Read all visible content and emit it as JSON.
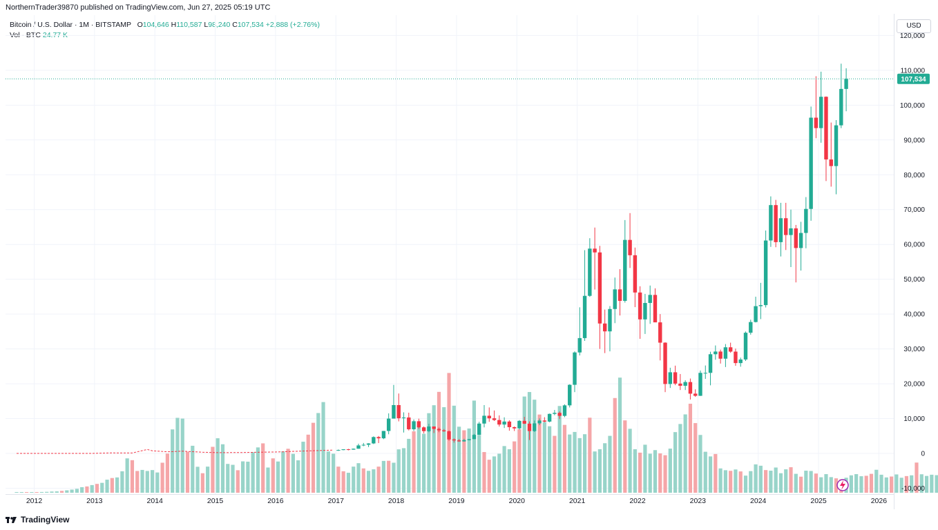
{
  "publish_line": "NorthernTrader39870 published on TradingView.com, Jun 27, 2025 05:19 UTC",
  "legend": {
    "symbol": "Bitcoin / U.S. Dollar · 1M · BITSTAMP",
    "o_label": "O",
    "o_value": "104,646",
    "h_label": "H",
    "h_value": "110,587",
    "l_label": "L",
    "l_value": "98,240",
    "c_label": "C",
    "c_value": "107,534",
    "change": "+2,888 (+2.76%)",
    "vol_label": "Vol · BTC",
    "vol_value": "24.77 K"
  },
  "currency_button": "USD",
  "footer_logo_text": "TradingView",
  "colors": {
    "up": "#22ab94",
    "down": "#f23645",
    "up_vol": "#98d4c9",
    "down_vol": "#f5a6a8",
    "grid": "#f0f3fa",
    "axis_text": "#131722"
  },
  "chart_data": {
    "type": "candlestick",
    "interval": "1M",
    "ylim": [
      -10000,
      120000
    ],
    "y_ticks": [
      120000,
      110000,
      100000,
      90000,
      80000,
      70000,
      60000,
      50000,
      40000,
      30000,
      20000,
      10000,
      0,
      -10000
    ],
    "y_tick_labels": [
      "120,000",
      "110,000",
      "100,000",
      "90,000",
      "80,000",
      "70,000",
      "60,000",
      "50,000",
      "40,000",
      "30,000",
      "20,000",
      "10,000",
      "0",
      "-10,000"
    ],
    "x_ticks": [
      "2012",
      "2013",
      "2014",
      "2015",
      "2016",
      "2017",
      "2018",
      "2019",
      "2020",
      "2021",
      "2022",
      "2023",
      "2024",
      "2025",
      "2026"
    ],
    "last_price": 107534,
    "last_price_label": "107,534",
    "candles": [
      {
        "d": "2017-01",
        "o": 965,
        "h": 1130,
        "l": 750,
        "c": 970
      },
      {
        "d": "2017-02",
        "o": 970,
        "h": 1200,
        "l": 920,
        "c": 1190
      },
      {
        "d": "2017-03",
        "o": 1190,
        "h": 1300,
        "l": 890,
        "c": 1080
      },
      {
        "d": "2017-04",
        "o": 1080,
        "h": 1400,
        "l": 1070,
        "c": 1350
      },
      {
        "d": "2017-05",
        "o": 1350,
        "h": 2790,
        "l": 1340,
        "c": 2300
      },
      {
        "d": "2017-06",
        "o": 2300,
        "h": 3000,
        "l": 2080,
        "c": 2480
      },
      {
        "d": "2017-07",
        "o": 2480,
        "h": 2950,
        "l": 1830,
        "c": 2870
      },
      {
        "d": "2017-08",
        "o": 2870,
        "h": 4900,
        "l": 2690,
        "c": 4700
      },
      {
        "d": "2017-09",
        "o": 4700,
        "h": 5000,
        "l": 2970,
        "c": 4340
      },
      {
        "d": "2017-10",
        "o": 4340,
        "h": 6470,
        "l": 4100,
        "c": 6450
      },
      {
        "d": "2017-11",
        "o": 6450,
        "h": 11500,
        "l": 5500,
        "c": 10000
      },
      {
        "d": "2017-12",
        "o": 10000,
        "h": 19666,
        "l": 10900,
        "c": 13880
      },
      {
        "d": "2018-01",
        "o": 13880,
        "h": 17200,
        "l": 9200,
        "c": 10100
      },
      {
        "d": "2018-02",
        "o": 10100,
        "h": 11800,
        "l": 6000,
        "c": 10320
      },
      {
        "d": "2018-03",
        "o": 10320,
        "h": 11700,
        "l": 6600,
        "c": 6930
      },
      {
        "d": "2018-04",
        "o": 6930,
        "h": 9760,
        "l": 6430,
        "c": 9240
      },
      {
        "d": "2018-05",
        "o": 9240,
        "h": 9990,
        "l": 7030,
        "c": 7490
      },
      {
        "d": "2018-06",
        "o": 7490,
        "h": 7760,
        "l": 5750,
        "c": 6390
      },
      {
        "d": "2018-07",
        "o": 6390,
        "h": 8490,
        "l": 6080,
        "c": 7730
      },
      {
        "d": "2018-08",
        "o": 7730,
        "h": 7760,
        "l": 5880,
        "c": 7030
      },
      {
        "d": "2018-09",
        "o": 7030,
        "h": 7420,
        "l": 6100,
        "c": 6630
      },
      {
        "d": "2018-10",
        "o": 6630,
        "h": 7000,
        "l": 6200,
        "c": 6370
      },
      {
        "d": "2018-11",
        "o": 6370,
        "h": 6590,
        "l": 3650,
        "c": 4010
      },
      {
        "d": "2018-12",
        "o": 4010,
        "h": 4300,
        "l": 3120,
        "c": 3740
      },
      {
        "d": "2019-01",
        "o": 3740,
        "h": 4140,
        "l": 3350,
        "c": 3460
      },
      {
        "d": "2019-02",
        "o": 3460,
        "h": 4210,
        "l": 3380,
        "c": 3830
      },
      {
        "d": "2019-03",
        "o": 3830,
        "h": 4140,
        "l": 3730,
        "c": 4100
      },
      {
        "d": "2019-04",
        "o": 4100,
        "h": 5600,
        "l": 4080,
        "c": 5320
      },
      {
        "d": "2019-05",
        "o": 5320,
        "h": 9080,
        "l": 5280,
        "c": 8570
      },
      {
        "d": "2019-06",
        "o": 8570,
        "h": 13880,
        "l": 7480,
        "c": 10820
      },
      {
        "d": "2019-07",
        "o": 10820,
        "h": 13200,
        "l": 9070,
        "c": 10080
      },
      {
        "d": "2019-08",
        "o": 10080,
        "h": 12330,
        "l": 9320,
        "c": 9590
      },
      {
        "d": "2019-09",
        "o": 9590,
        "h": 10920,
        "l": 7710,
        "c": 8290
      },
      {
        "d": "2019-10",
        "o": 8290,
        "h": 10370,
        "l": 7300,
        "c": 9150
      },
      {
        "d": "2019-11",
        "o": 9150,
        "h": 9520,
        "l": 6520,
        "c": 7540
      },
      {
        "d": "2019-12",
        "o": 7540,
        "h": 7750,
        "l": 6430,
        "c": 7190
      },
      {
        "d": "2020-01",
        "o": 7190,
        "h": 9580,
        "l": 6860,
        "c": 9350
      },
      {
        "d": "2020-02",
        "o": 9350,
        "h": 10500,
        "l": 8440,
        "c": 8540
      },
      {
        "d": "2020-03",
        "o": 8540,
        "h": 9190,
        "l": 3850,
        "c": 6420
      },
      {
        "d": "2020-04",
        "o": 6420,
        "h": 9460,
        "l": 6160,
        "c": 8630
      },
      {
        "d": "2020-05",
        "o": 8630,
        "h": 10070,
        "l": 8120,
        "c": 9450
      },
      {
        "d": "2020-06",
        "o": 9450,
        "h": 10400,
        "l": 8930,
        "c": 9140
      },
      {
        "d": "2020-07",
        "o": 9140,
        "h": 11450,
        "l": 8930,
        "c": 11350
      },
      {
        "d": "2020-08",
        "o": 11350,
        "h": 12470,
        "l": 10960,
        "c": 11650
      },
      {
        "d": "2020-09",
        "o": 11650,
        "h": 12070,
        "l": 9880,
        "c": 10780
      },
      {
        "d": "2020-10",
        "o": 10780,
        "h": 14100,
        "l": 10400,
        "c": 13800
      },
      {
        "d": "2020-11",
        "o": 13800,
        "h": 19850,
        "l": 13200,
        "c": 19700
      },
      {
        "d": "2020-12",
        "o": 19700,
        "h": 29300,
        "l": 17600,
        "c": 28990
      },
      {
        "d": "2021-01",
        "o": 28990,
        "h": 41950,
        "l": 28130,
        "c": 33110
      },
      {
        "d": "2021-02",
        "o": 33110,
        "h": 58350,
        "l": 32300,
        "c": 45240
      },
      {
        "d": "2021-03",
        "o": 45240,
        "h": 61790,
        "l": 44950,
        "c": 58800
      },
      {
        "d": "2021-04",
        "o": 58800,
        "h": 64850,
        "l": 47050,
        "c": 57710
      },
      {
        "d": "2021-05",
        "o": 57710,
        "h": 59600,
        "l": 30000,
        "c": 37300
      },
      {
        "d": "2021-06",
        "o": 37300,
        "h": 41300,
        "l": 28800,
        "c": 35040
      },
      {
        "d": "2021-07",
        "o": 35040,
        "h": 42300,
        "l": 29300,
        "c": 41460
      },
      {
        "d": "2021-08",
        "o": 41460,
        "h": 50500,
        "l": 37400,
        "c": 47100
      },
      {
        "d": "2021-09",
        "o": 47100,
        "h": 52900,
        "l": 39600,
        "c": 43800
      },
      {
        "d": "2021-10",
        "o": 43800,
        "h": 67000,
        "l": 43300,
        "c": 61300
      },
      {
        "d": "2021-11",
        "o": 61300,
        "h": 69000,
        "l": 53250,
        "c": 56900
      },
      {
        "d": "2021-12",
        "o": 56900,
        "h": 59100,
        "l": 42000,
        "c": 46200
      },
      {
        "d": "2022-01",
        "o": 46200,
        "h": 47990,
        "l": 32900,
        "c": 38480
      },
      {
        "d": "2022-02",
        "o": 38480,
        "h": 45800,
        "l": 34300,
        "c": 43200
      },
      {
        "d": "2022-03",
        "o": 43200,
        "h": 48200,
        "l": 37200,
        "c": 45510
      },
      {
        "d": "2022-04",
        "o": 45510,
        "h": 47400,
        "l": 37700,
        "c": 37630
      },
      {
        "d": "2022-05",
        "o": 37630,
        "h": 40000,
        "l": 26700,
        "c": 31800
      },
      {
        "d": "2022-06",
        "o": 31800,
        "h": 31900,
        "l": 17600,
        "c": 19930
      },
      {
        "d": "2022-07",
        "o": 19930,
        "h": 24600,
        "l": 18800,
        "c": 23300
      },
      {
        "d": "2022-08",
        "o": 23300,
        "h": 25200,
        "l": 19600,
        "c": 20050
      },
      {
        "d": "2022-09",
        "o": 20050,
        "h": 22800,
        "l": 18200,
        "c": 19420
      },
      {
        "d": "2022-10",
        "o": 19420,
        "h": 21000,
        "l": 18200,
        "c": 20490
      },
      {
        "d": "2022-11",
        "o": 20490,
        "h": 21500,
        "l": 15480,
        "c": 17160
      },
      {
        "d": "2022-12",
        "o": 17160,
        "h": 18400,
        "l": 16250,
        "c": 16540
      },
      {
        "d": "2023-01",
        "o": 16540,
        "h": 23800,
        "l": 16500,
        "c": 23130
      },
      {
        "d": "2023-02",
        "o": 23130,
        "h": 25250,
        "l": 21400,
        "c": 23130
      },
      {
        "d": "2023-03",
        "o": 23130,
        "h": 29200,
        "l": 19550,
        "c": 28480
      },
      {
        "d": "2023-04",
        "o": 28480,
        "h": 31000,
        "l": 26900,
        "c": 29250
      },
      {
        "d": "2023-05",
        "o": 29250,
        "h": 29800,
        "l": 25800,
        "c": 27200
      },
      {
        "d": "2023-06",
        "o": 27200,
        "h": 31400,
        "l": 24800,
        "c": 30470
      },
      {
        "d": "2023-07",
        "o": 30470,
        "h": 31800,
        "l": 28900,
        "c": 29230
      },
      {
        "d": "2023-08",
        "o": 29230,
        "h": 30100,
        "l": 25150,
        "c": 25940
      },
      {
        "d": "2023-09",
        "o": 25940,
        "h": 27500,
        "l": 24900,
        "c": 26970
      },
      {
        "d": "2023-10",
        "o": 26970,
        "h": 35000,
        "l": 26550,
        "c": 34650
      },
      {
        "d": "2023-11",
        "o": 34650,
        "h": 38400,
        "l": 34100,
        "c": 37720
      },
      {
        "d": "2023-12",
        "o": 37720,
        "h": 45000,
        "l": 37600,
        "c": 42280
      },
      {
        "d": "2024-01",
        "o": 42280,
        "h": 48970,
        "l": 38560,
        "c": 42580
      },
      {
        "d": "2024-02",
        "o": 42580,
        "h": 64000,
        "l": 41900,
        "c": 61130
      },
      {
        "d": "2024-03",
        "o": 61130,
        "h": 73800,
        "l": 59300,
        "c": 71300
      },
      {
        "d": "2024-04",
        "o": 71300,
        "h": 72800,
        "l": 59200,
        "c": 60660
      },
      {
        "d": "2024-05",
        "o": 60660,
        "h": 71950,
        "l": 56550,
        "c": 67530
      },
      {
        "d": "2024-06",
        "o": 67530,
        "h": 71950,
        "l": 58400,
        "c": 62700
      },
      {
        "d": "2024-07",
        "o": 62700,
        "h": 70000,
        "l": 53500,
        "c": 64620
      },
      {
        "d": "2024-08",
        "o": 64620,
        "h": 65600,
        "l": 49100,
        "c": 58970
      },
      {
        "d": "2024-09",
        "o": 58970,
        "h": 66500,
        "l": 52500,
        "c": 63300
      },
      {
        "d": "2024-10",
        "o": 63300,
        "h": 73600,
        "l": 58900,
        "c": 70200
      },
      {
        "d": "2024-11",
        "o": 70200,
        "h": 99600,
        "l": 66800,
        "c": 96400
      },
      {
        "d": "2024-12",
        "o": 96400,
        "h": 108300,
        "l": 90500,
        "c": 93400
      },
      {
        "d": "2025-01",
        "o": 93400,
        "h": 109600,
        "l": 89200,
        "c": 102400
      },
      {
        "d": "2025-02",
        "o": 102400,
        "h": 102500,
        "l": 78200,
        "c": 84400
      },
      {
        "d": "2025-03",
        "o": 84400,
        "h": 95000,
        "l": 76600,
        "c": 82500
      },
      {
        "d": "2025-04",
        "o": 82500,
        "h": 95700,
        "l": 74400,
        "c": 94200
      },
      {
        "d": "2025-05",
        "o": 94200,
        "h": 111900,
        "l": 93400,
        "c": 104646
      },
      {
        "d": "2025-06",
        "o": 104646,
        "h": 110587,
        "l": 98240,
        "c": 107534
      }
    ],
    "early_price_trace": [
      {
        "d": "2011-09",
        "c": 5
      },
      {
        "d": "2012-01",
        "c": 6
      },
      {
        "d": "2012-06",
        "c": 7
      },
      {
        "d": "2012-12",
        "c": 13
      },
      {
        "d": "2013-04",
        "c": 140
      },
      {
        "d": "2013-08",
        "c": 130
      },
      {
        "d": "2013-11",
        "c": 1130
      },
      {
        "d": "2013-12",
        "c": 750
      },
      {
        "d": "2014-03",
        "c": 460
      },
      {
        "d": "2014-06",
        "c": 640
      },
      {
        "d": "2014-10",
        "c": 340
      },
      {
        "d": "2015-01",
        "c": 220
      },
      {
        "d": "2015-06",
        "c": 260
      },
      {
        "d": "2015-11",
        "c": 380
      },
      {
        "d": "2016-01",
        "c": 430
      },
      {
        "d": "2016-06",
        "c": 670
      },
      {
        "d": "2016-12",
        "c": 960
      }
    ],
    "volume": {
      "start": "2011-09",
      "values_btc_k": [
        0.2,
        0.2,
        0.3,
        0.3,
        0.4,
        0.5,
        0.6,
        0.8,
        0.9,
        1.2,
        1.6,
        2.1,
        2.6,
        3.7,
        4.2,
        5.1,
        5.9,
        6.6,
        8.7,
        9.8,
        10.2,
        14.3,
        22.9,
        21.7,
        14.5,
        15.2,
        14.5,
        15.1,
        13.5,
        20.0,
        26.1,
        42.2,
        49.9,
        49.4,
        27.3,
        31.3,
        17.3,
        13.0,
        17.4,
        30.6,
        36.3,
        32.3,
        19.2,
        18.6,
        15.0,
        20.9,
        20.7,
        27.0,
        30.2,
        32.9,
        16.8,
        22.9,
        20.8,
        27.6,
        29.3,
        25.9,
        21.6,
        34.0,
        38.7,
        46.6,
        53.1,
        60.4,
        27.5,
        26.0,
        17.4,
        14.3,
        13.3,
        17.4,
        19.7,
        16.2,
        14.6,
        15.6,
        17.4,
        21.2,
        21.3,
        20.0,
        28.9,
        29.7,
        35.9,
        40.9,
        44.0,
        39.3,
        53.0,
        58.3,
        67.2,
        57.0,
        79.8,
        58.0,
        44.0,
        41.6,
        42.8,
        61.4,
        38.3,
        27.1,
        22.0,
        24.2,
        26.0,
        31.1,
        29.0,
        34.2,
        42.3,
        64.1,
        67.1,
        62.0,
        52.1,
        47.1,
        44.3,
        37.9,
        57.8,
        45.2,
        38.8,
        40.5,
        36.4,
        39.0,
        50.0,
        27.5,
        29.0,
        33.0,
        37.9,
        63.1,
        76.7,
        48.2,
        42.6,
        29.0,
        26.7,
        32.0,
        26.0,
        28.4,
        26.2,
        25.0,
        29.4,
        40.4,
        45.8,
        52.2,
        59.3,
        46.4,
        38.5,
        27.3,
        24.2,
        25.8,
        16.2,
        15.0,
        14.6,
        15.5,
        14.2,
        11.4,
        14.4,
        18.9,
        18.0,
        15.1,
        14.7,
        16.8,
        13.0,
        15.6,
        17.0,
        12.6,
        10.7,
        14.7,
        14.5,
        12.8,
        10.3,
        12.4,
        10.4,
        9.6,
        8.9,
        10.0,
        11.6,
        12.4,
        11.0,
        11.3,
        12.6,
        15.3,
        12.0,
        10.2,
        10.8,
        12.2,
        10.0,
        11.1,
        11.6,
        20.1,
        12.3,
        11.2,
        12.0,
        11.7,
        11.0,
        11.0,
        9.5,
        6.1,
        24.8
      ]
    }
  }
}
